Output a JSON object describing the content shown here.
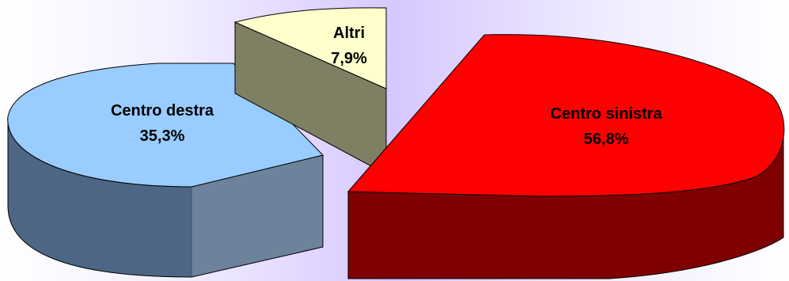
{
  "chart_data": {
    "type": "pie",
    "style": "3d-exploded",
    "slices": [
      {
        "label": "Centro sinistra",
        "value": 56.8,
        "value_text": "56,8%",
        "color": "#ff0000",
        "side_color": "#7f0000"
      },
      {
        "label": "Centro destra",
        "value": 35.3,
        "value_text": "35,3%",
        "color": "#99ccff",
        "side_color": "#4d6685"
      },
      {
        "label": "Altri",
        "value": 7.9,
        "value_text": "7,9%",
        "color": "#ffffcc",
        "side_color": "#7f7f63"
      }
    ]
  }
}
